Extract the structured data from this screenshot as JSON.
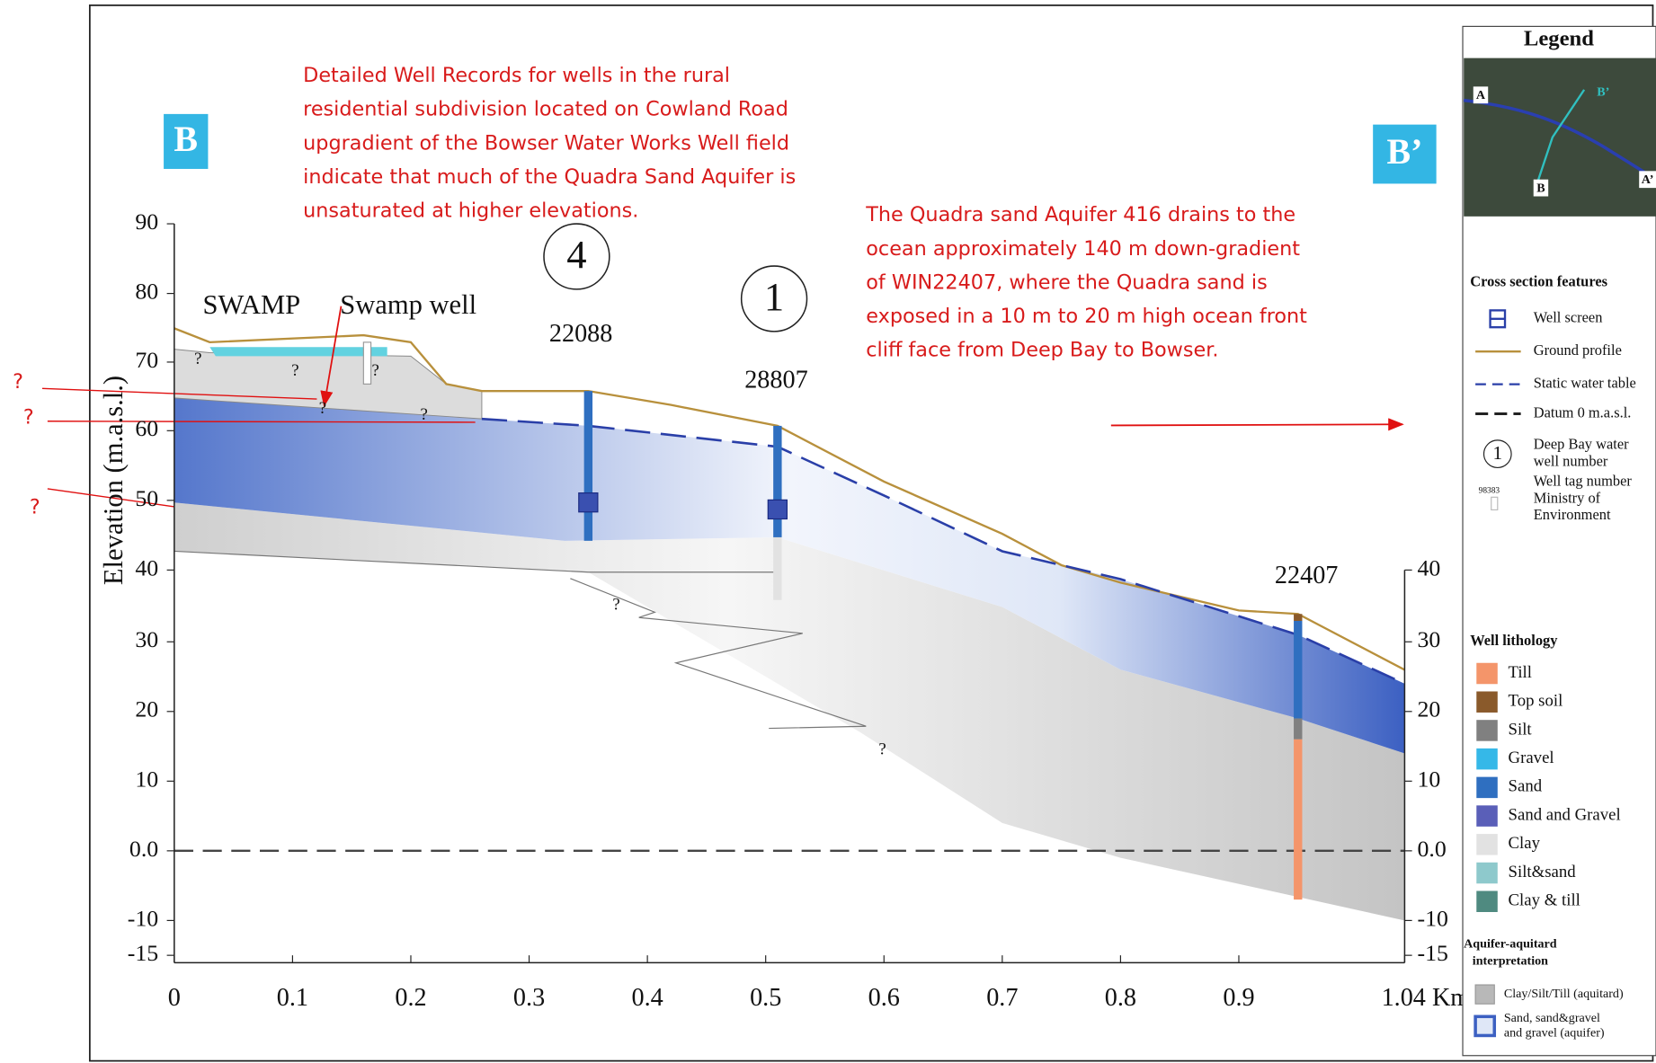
{
  "section_labels": {
    "left": "B",
    "right": "B’"
  },
  "annotations": [
    {
      "lines": [
        "Detailed Well Records for wells in the rural",
        "residential subdivision located on Cowland Road",
        "upgradient of the Bowser Water Works Well field",
        "indicate that much of the Quadra Sand Aquifer is",
        "unsaturated at higher elevations."
      ]
    },
    {
      "lines": [
        "The Quadra sand Aquifer 416 drains to the",
        "ocean approximately 140 m down-gradient",
        "of WIN22407, where the Quadra sand is",
        "exposed in a 10 m to 20 m high ocean front",
        "cliff face from Deep Bay to Bowser."
      ]
    }
  ],
  "margin_question_marks": [
    "?",
    "?",
    "?"
  ],
  "axes": {
    "y_title": "Elevation (m.a.s.l.)",
    "y_ticks": [
      "90",
      "80",
      "70",
      "60",
      "50",
      "40",
      "30",
      "20",
      "10",
      "0.0",
      "-10",
      "-15"
    ],
    "y2_ticks": [
      "40",
      "30",
      "20",
      "10",
      "0.0",
      "-10",
      "-15"
    ],
    "x_ticks": [
      "0",
      "0.1",
      "0.2",
      "0.3",
      "0.4",
      "0.5",
      "0.6",
      "0.7",
      "0.8",
      "0.9",
      "1.04 Km"
    ]
  },
  "section": {
    "swamp": "SWAMP",
    "swamp_well": "Swamp well",
    "wells": [
      {
        "number": "4",
        "tag": "22088"
      },
      {
        "number": "1",
        "tag": "28807"
      },
      {
        "tag": "22407"
      }
    ],
    "question_marks": [
      "?",
      "?",
      "?",
      "?",
      "?",
      "?",
      "?"
    ]
  },
  "legend": {
    "title": "Legend",
    "map_labels": [
      "A",
      "B’",
      "B",
      "A’"
    ],
    "features_title": "Cross section features",
    "features": [
      {
        "lines": [
          "Well screen"
        ]
      },
      {
        "lines": [
          "Ground profile"
        ]
      },
      {
        "lines": [
          "Static water table"
        ]
      },
      {
        "lines": [
          "Datum 0 m.a.s.l."
        ]
      },
      {
        "symbol": "1",
        "lines": [
          "Deep Bay water",
          "well number"
        ]
      },
      {
        "symbol": "98383",
        "lines": [
          "Well tag number",
          "Ministry of",
          "Environment"
        ]
      }
    ],
    "lithology_title": "Well lithology",
    "lithology": [
      {
        "name": "Till",
        "color": "#f4956a"
      },
      {
        "name": "Top soil",
        "color": "#8a5a2b"
      },
      {
        "name": "Silt",
        "color": "#808080"
      },
      {
        "name": "Gravel",
        "color": "#35b8e8"
      },
      {
        "name": "Sand",
        "color": "#2f6fc0"
      },
      {
        "name": "Sand and Gravel",
        "color": "#5a5fb8"
      },
      {
        "name": "Clay",
        "color": "#e2e2e2"
      },
      {
        "name": "Silt&sand",
        "color": "#8ec9cc"
      },
      {
        "name": "Clay & till",
        "color": "#4f8a80"
      }
    ],
    "interpretation_title": [
      "Aquifer-aquitard",
      "interpretation"
    ],
    "interpretation": [
      {
        "lines": [
          "Clay/Silt/Till (aquitard)"
        ]
      },
      {
        "lines": [
          "Sand, sand&gravel",
          "and gravel (aquifer)"
        ]
      }
    ]
  }
}
